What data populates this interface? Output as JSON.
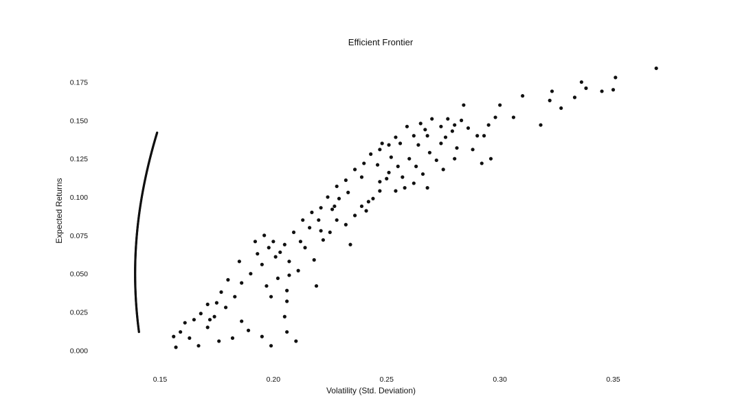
{
  "chart_data": {
    "type": "scatter",
    "title": "Efficient Frontier",
    "xlabel": "Volatility (Std. Deviation)",
    "ylabel": "Expected Returns",
    "xlim": [
      0.12,
      0.375
    ],
    "ylim": [
      -0.007,
      0.186
    ],
    "x_ticks": [
      "0.15",
      "0.20",
      "0.25",
      "0.30",
      "0.35"
    ],
    "y_ticks": [
      "0.000",
      "0.025",
      "0.050",
      "0.075",
      "0.100",
      "0.125",
      "0.150",
      "0.175"
    ],
    "grid": false,
    "legend": "none",
    "colors": {
      "points": "#111111",
      "text": "#111111",
      "background": "#ffffff"
    },
    "frontier": {
      "min_variance_point": {
        "x": 0.139,
        "y": 0.05
      },
      "curvature": 0.33,
      "y_range": [
        0.012,
        0.142
      ]
    },
    "points": [
      [
        0.369,
        0.184
      ],
      [
        0.351,
        0.178
      ],
      [
        0.35,
        0.17
      ],
      [
        0.345,
        0.169
      ],
      [
        0.338,
        0.171
      ],
      [
        0.336,
        0.175
      ],
      [
        0.333,
        0.165
      ],
      [
        0.327,
        0.158
      ],
      [
        0.323,
        0.169
      ],
      [
        0.322,
        0.163
      ],
      [
        0.318,
        0.147
      ],
      [
        0.31,
        0.166
      ],
      [
        0.306,
        0.152
      ],
      [
        0.3,
        0.16
      ],
      [
        0.298,
        0.152
      ],
      [
        0.295,
        0.147
      ],
      [
        0.29,
        0.14
      ],
      [
        0.284,
        0.16
      ],
      [
        0.283,
        0.15
      ],
      [
        0.279,
        0.143
      ],
      [
        0.274,
        0.135
      ],
      [
        0.272,
        0.124
      ],
      [
        0.269,
        0.129
      ],
      [
        0.266,
        0.115
      ],
      [
        0.262,
        0.109
      ],
      [
        0.258,
        0.106
      ],
      [
        0.254,
        0.104
      ],
      [
        0.25,
        0.112
      ],
      [
        0.247,
        0.104
      ],
      [
        0.242,
        0.097
      ],
      [
        0.239,
        0.094
      ],
      [
        0.234,
        0.069
      ],
      [
        0.227,
        0.094
      ],
      [
        0.219,
        0.042
      ],
      [
        0.21,
        0.006
      ],
      [
        0.206,
        0.012
      ],
      [
        0.205,
        0.022
      ],
      [
        0.206,
        0.032
      ],
      [
        0.206,
        0.039
      ],
      [
        0.207,
        0.049
      ],
      [
        0.202,
        0.047
      ],
      [
        0.201,
        0.061
      ],
      [
        0.199,
        0.003
      ],
      [
        0.195,
        0.009
      ],
      [
        0.199,
        0.035
      ],
      [
        0.197,
        0.042
      ],
      [
        0.195,
        0.056
      ],
      [
        0.192,
        0.071
      ],
      [
        0.189,
        0.013
      ],
      [
        0.186,
        0.019
      ],
      [
        0.182,
        0.008
      ],
      [
        0.176,
        0.006
      ],
      [
        0.172,
        0.02
      ],
      [
        0.167,
        0.003
      ],
      [
        0.163,
        0.008
      ],
      [
        0.159,
        0.012
      ],
      [
        0.157,
        0.002
      ],
      [
        0.212,
        0.071
      ],
      [
        0.216,
        0.08
      ],
      [
        0.22,
        0.085
      ],
      [
        0.214,
        0.067
      ],
      [
        0.218,
        0.059
      ],
      [
        0.222,
        0.072
      ],
      [
        0.225,
        0.077
      ],
      [
        0.228,
        0.085
      ],
      [
        0.232,
        0.082
      ],
      [
        0.236,
        0.088
      ],
      [
        0.241,
        0.091
      ],
      [
        0.244,
        0.099
      ],
      [
        0.247,
        0.11
      ],
      [
        0.251,
        0.116
      ],
      [
        0.255,
        0.12
      ],
      [
        0.26,
        0.125
      ],
      [
        0.264,
        0.134
      ],
      [
        0.268,
        0.14
      ],
      [
        0.276,
        0.139
      ],
      [
        0.281,
        0.132
      ],
      [
        0.288,
        0.131
      ],
      [
        0.292,
        0.122
      ],
      [
        0.296,
        0.125
      ],
      [
        0.28,
        0.125
      ],
      [
        0.275,
        0.118
      ],
      [
        0.268,
        0.106
      ],
      [
        0.263,
        0.12
      ],
      [
        0.257,
        0.113
      ],
      [
        0.252,
        0.126
      ],
      [
        0.246,
        0.121
      ],
      [
        0.248,
        0.135
      ],
      [
        0.254,
        0.139
      ],
      [
        0.259,
        0.146
      ],
      [
        0.265,
        0.148
      ],
      [
        0.27,
        0.151
      ],
      [
        0.277,
        0.151
      ],
      [
        0.286,
        0.145
      ],
      [
        0.293,
        0.14
      ],
      [
        0.239,
        0.113
      ],
      [
        0.233,
        0.103
      ],
      [
        0.229,
        0.099
      ],
      [
        0.226,
        0.092
      ],
      [
        0.221,
        0.078
      ],
      [
        0.211,
        0.052
      ],
      [
        0.207,
        0.058
      ],
      [
        0.203,
        0.064
      ],
      [
        0.198,
        0.067
      ],
      [
        0.193,
        0.063
      ],
      [
        0.19,
        0.05
      ],
      [
        0.186,
        0.044
      ],
      [
        0.183,
        0.035
      ],
      [
        0.179,
        0.028
      ],
      [
        0.175,
        0.031
      ],
      [
        0.171,
        0.03
      ],
      [
        0.168,
        0.024
      ],
      [
        0.165,
        0.02
      ],
      [
        0.161,
        0.018
      ],
      [
        0.156,
        0.009
      ],
      [
        0.185,
        0.058
      ],
      [
        0.18,
        0.046
      ],
      [
        0.177,
        0.038
      ],
      [
        0.174,
        0.022
      ],
      [
        0.171,
        0.015
      ],
      [
        0.196,
        0.075
      ],
      [
        0.2,
        0.071
      ],
      [
        0.205,
        0.069
      ],
      [
        0.209,
        0.077
      ],
      [
        0.213,
        0.085
      ],
      [
        0.217,
        0.09
      ],
      [
        0.221,
        0.093
      ],
      [
        0.224,
        0.1
      ],
      [
        0.228,
        0.107
      ],
      [
        0.232,
        0.111
      ],
      [
        0.236,
        0.118
      ],
      [
        0.24,
        0.122
      ],
      [
        0.243,
        0.128
      ],
      [
        0.247,
        0.131
      ],
      [
        0.251,
        0.134
      ],
      [
        0.256,
        0.135
      ],
      [
        0.262,
        0.14
      ],
      [
        0.267,
        0.144
      ],
      [
        0.274,
        0.146
      ],
      [
        0.28,
        0.147
      ]
    ]
  }
}
